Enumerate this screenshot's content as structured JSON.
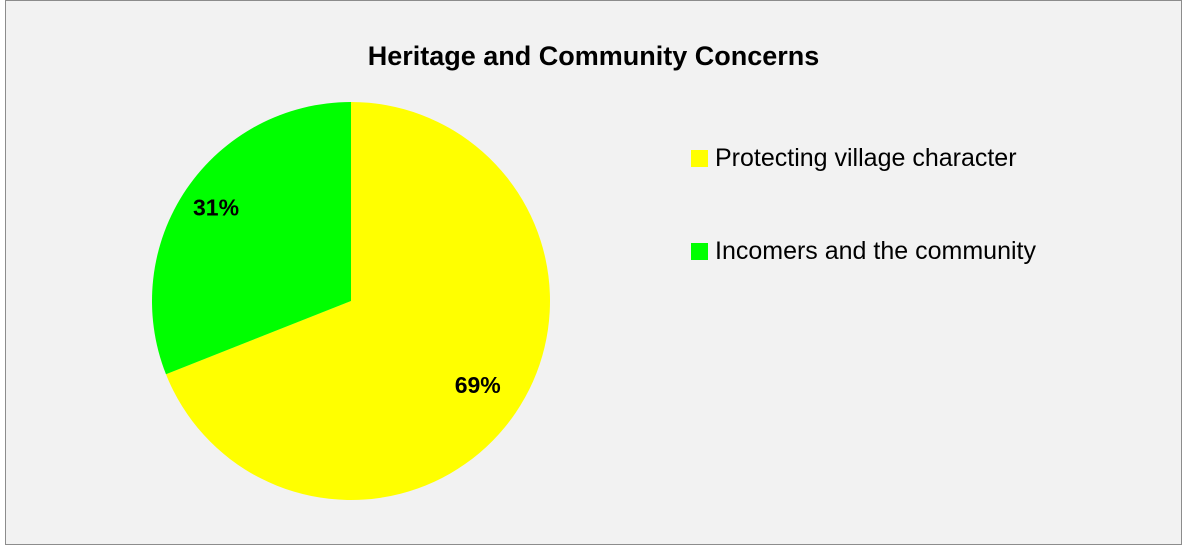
{
  "chart_data": {
    "type": "pie",
    "title": "Heritage and Community Concerns",
    "categories": [
      "Protecting village character",
      "Incomers and the community"
    ],
    "values": [
      69,
      31
    ],
    "data_labels": [
      "69%",
      "31%"
    ],
    "colors": [
      "#ffff00",
      "#00ff00"
    ],
    "start_angle_deg": 0,
    "direction": "clockwise",
    "legend_position": "right",
    "background_color": "#f2f2f2"
  }
}
